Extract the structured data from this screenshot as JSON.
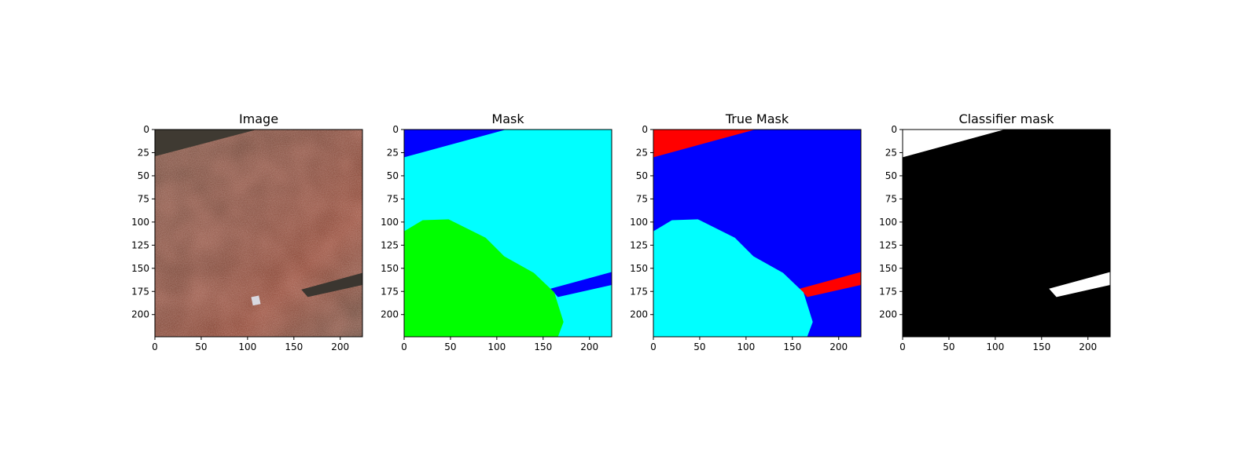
{
  "chart_data": [
    {
      "type": "heatmap",
      "title": "Image",
      "xlim": [
        0,
        224
      ],
      "ylim": [
        224,
        0
      ],
      "xticks": [
        0,
        50,
        100,
        150,
        200
      ],
      "yticks": [
        0,
        25,
        50,
        75,
        100,
        125,
        150,
        175,
        200
      ],
      "grid": false,
      "content": "photo",
      "colors": {
        "background": "#6b3a2a",
        "dark": "#3a3128",
        "highlight": "#a9472f"
      },
      "regions": [
        {
          "label": "top-left dark strip",
          "polygon": [
            [
              0,
              0
            ],
            [
              110,
              0
            ],
            [
              0,
              29
            ]
          ],
          "color": "#3f3a32"
        },
        {
          "label": "lower-right dark strip",
          "polygon": [
            [
              224,
              155
            ],
            [
              224,
              168
            ],
            [
              165,
              181
            ],
            [
              158,
              173
            ]
          ],
          "color": "#3b3630"
        }
      ]
    },
    {
      "type": "heatmap",
      "title": "Mask",
      "xlim": [
        0,
        224
      ],
      "ylim": [
        224,
        0
      ],
      "xticks": [
        0,
        50,
        100,
        150,
        200
      ],
      "yticks": [
        0,
        25,
        50,
        75,
        100,
        125,
        150,
        175,
        200
      ],
      "grid": false,
      "content": "mask",
      "background": "#00ffff",
      "regions": [
        {
          "label": "blue top strip",
          "polygon": [
            [
              0,
              0
            ],
            [
              110,
              0
            ],
            [
              0,
              30
            ]
          ],
          "color": "#0000ff"
        },
        {
          "label": "blue lower strip",
          "polygon": [
            [
              224,
              154
            ],
            [
              224,
              168
            ],
            [
              166,
              181
            ],
            [
              158,
              172
            ]
          ],
          "color": "#0000ff"
        },
        {
          "label": "green region",
          "polygon": [
            [
              0,
              224
            ],
            [
              0,
              110
            ],
            [
              20,
              98
            ],
            [
              48,
              97
            ],
            [
              88,
              117
            ],
            [
              108,
              137
            ],
            [
              140,
              155
            ],
            [
              162,
              176
            ],
            [
              172,
              208
            ],
            [
              166,
              224
            ]
          ],
          "color": "#00ff00"
        }
      ]
    },
    {
      "type": "heatmap",
      "title": "True Mask",
      "xlim": [
        0,
        224
      ],
      "ylim": [
        224,
        0
      ],
      "xticks": [
        0,
        50,
        100,
        150,
        200
      ],
      "yticks": [
        0,
        25,
        50,
        75,
        100,
        125,
        150,
        175,
        200
      ],
      "grid": false,
      "content": "mask",
      "background": "#0000ff",
      "regions": [
        {
          "label": "red top strip",
          "polygon": [
            [
              0,
              0
            ],
            [
              110,
              0
            ],
            [
              0,
              30
            ]
          ],
          "color": "#ff0000"
        },
        {
          "label": "red lower strip",
          "polygon": [
            [
              224,
              154
            ],
            [
              224,
              168
            ],
            [
              166,
              181
            ],
            [
              158,
              172
            ]
          ],
          "color": "#ff0000"
        },
        {
          "label": "cyan region",
          "polygon": [
            [
              0,
              224
            ],
            [
              0,
              110
            ],
            [
              20,
              98
            ],
            [
              48,
              97
            ],
            [
              88,
              117
            ],
            [
              108,
              137
            ],
            [
              140,
              155
            ],
            [
              162,
              176
            ],
            [
              172,
              208
            ],
            [
              166,
              224
            ]
          ],
          "color": "#00ffff"
        }
      ]
    },
    {
      "type": "heatmap",
      "title": "Classifier mask",
      "xlim": [
        0,
        224
      ],
      "ylim": [
        224,
        0
      ],
      "xticks": [
        0,
        50,
        100,
        150,
        200
      ],
      "yticks": [
        0,
        25,
        50,
        75,
        100,
        125,
        150,
        175,
        200
      ],
      "grid": false,
      "content": "mask",
      "background": "#000000",
      "regions": [
        {
          "label": "white top strip",
          "polygon": [
            [
              0,
              0
            ],
            [
              110,
              0
            ],
            [
              0,
              30
            ]
          ],
          "color": "#ffffff"
        },
        {
          "label": "white lower strip",
          "polygon": [
            [
              224,
              154
            ],
            [
              224,
              168
            ],
            [
              166,
              181
            ],
            [
              158,
              172
            ]
          ],
          "color": "#ffffff"
        }
      ]
    }
  ]
}
